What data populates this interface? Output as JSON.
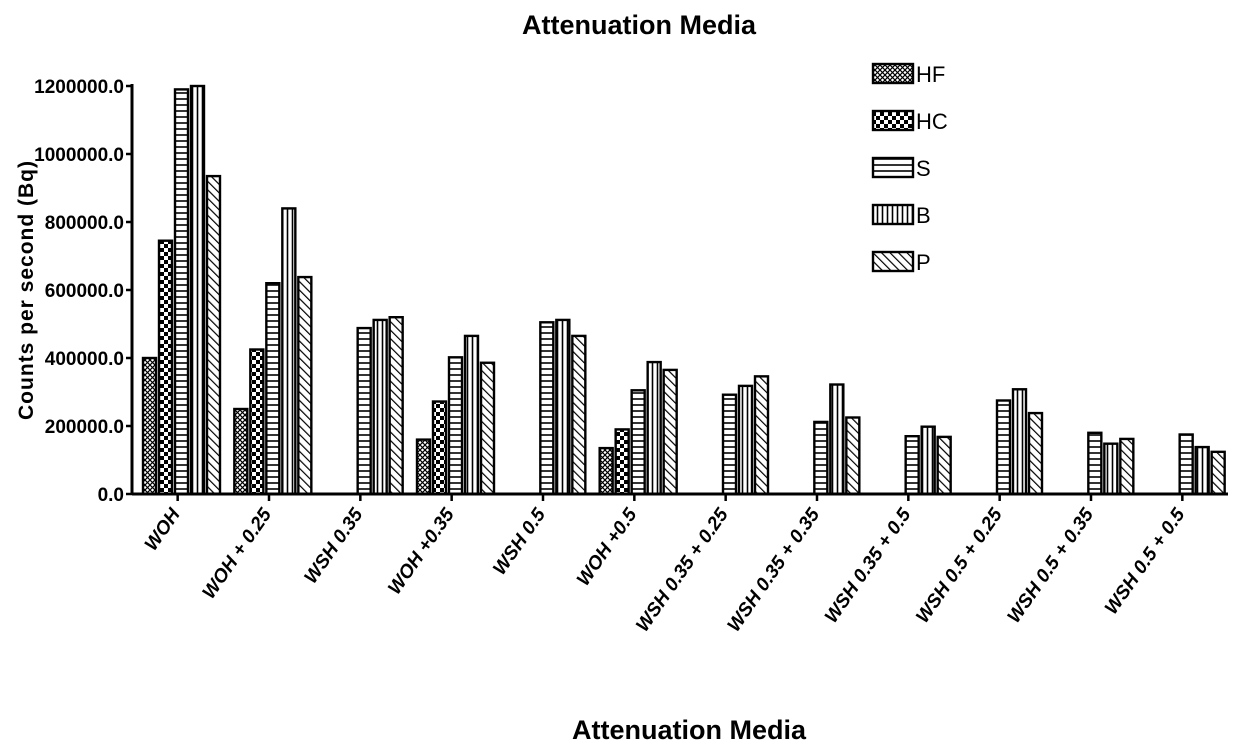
{
  "chart_data": {
    "type": "bar",
    "title": "Attenuation Media",
    "xlabel": "Attenuation Media",
    "ylabel": "Counts per second (Bq)",
    "ylim": [
      0,
      1200000
    ],
    "yticks": [
      "0.0",
      "200000.0",
      "400000.0",
      "600000.0",
      "800000.0",
      "1000000.0",
      "1200000.0"
    ],
    "grid": false,
    "legend_position": "top-right",
    "categories": [
      "WOH",
      "WOH + 0.25",
      "WSH 0.35",
      "WOH +0.35",
      "WSH 0.5",
      "WOH +0.5",
      "WSH 0.35 + 0.25",
      "WSH 0.35 + 0.35",
      "WSH 0.35 + 0.5",
      "WSH 0.5 + 0.25",
      "WSH 0.5 + 0.35",
      "WSH 0.5 + 0.5"
    ],
    "series": [
      {
        "name": "HF",
        "pattern": "crosshatch-fine",
        "values": [
          400000,
          250000,
          null,
          160000,
          null,
          135000,
          null,
          null,
          null,
          null,
          null,
          null
        ]
      },
      {
        "name": "HC",
        "pattern": "checker",
        "values": [
          745000,
          425000,
          null,
          272000,
          null,
          190000,
          null,
          null,
          null,
          null,
          null,
          null
        ]
      },
      {
        "name": "S",
        "pattern": "horizontal-lines",
        "values": [
          1190000,
          620000,
          488000,
          402000,
          505000,
          305000,
          292000,
          212000,
          170000,
          275000,
          180000,
          175000
        ]
      },
      {
        "name": "B",
        "pattern": "vertical-lines",
        "values": [
          1200000,
          840000,
          512000,
          465000,
          512000,
          388000,
          318000,
          322000,
          198000,
          308000,
          148000,
          138000
        ]
      },
      {
        "name": "P",
        "pattern": "diagonal-lines",
        "values": [
          935000,
          638000,
          520000,
          386000,
          465000,
          365000,
          346000,
          225000,
          168000,
          238000,
          162000,
          124000
        ]
      }
    ]
  }
}
